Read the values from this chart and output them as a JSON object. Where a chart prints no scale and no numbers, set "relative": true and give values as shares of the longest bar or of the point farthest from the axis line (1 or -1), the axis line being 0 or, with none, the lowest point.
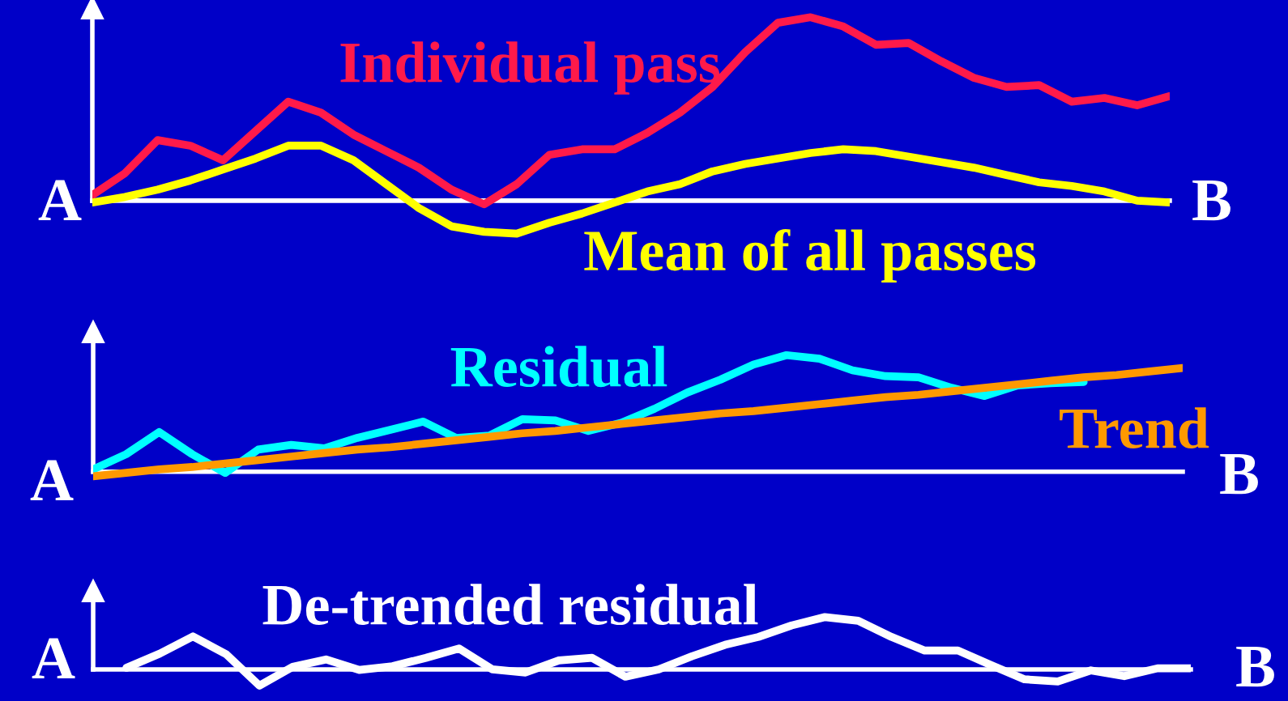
{
  "chart_data": [
    {
      "type": "line",
      "relative": true,
      "legend": false,
      "marker": "none",
      "line_style": "solid",
      "annotations": [
        "A",
        "B"
      ],
      "categories": [
        null,
        null,
        null,
        null,
        null,
        null,
        null,
        null,
        null,
        null,
        null,
        null,
        null,
        null,
        null,
        null,
        null,
        null,
        null,
        null,
        null,
        null,
        null,
        null,
        null,
        null,
        null,
        null,
        null,
        null,
        null,
        null,
        null,
        null
      ],
      "series": [
        {
          "name": "Individual pass",
          "color": "#ff1a4a",
          "values": [
            0.03,
            0.15,
            0.33,
            0.3,
            0.22,
            0.38,
            0.54,
            0.48,
            0.36,
            0.27,
            0.18,
            0.06,
            -0.02,
            0.09,
            0.25,
            0.28,
            0.28,
            0.37,
            0.48,
            0.62,
            0.81,
            0.97,
            1.0,
            0.95,
            0.85,
            0.86,
            0.76,
            0.67,
            0.62,
            0.63,
            0.54,
            0.56,
            0.52,
            0.57
          ]
        },
        {
          "name": "Mean of all passes",
          "color": "#ffff00",
          "values": [
            -0.01,
            0.02,
            0.06,
            0.11,
            0.17,
            0.23,
            0.3,
            0.3,
            0.22,
            0.09,
            -0.04,
            -0.14,
            -0.17,
            -0.18,
            -0.12,
            -0.07,
            -0.01,
            0.05,
            0.09,
            0.16,
            0.2,
            0.23,
            0.26,
            0.28,
            0.27,
            0.24,
            0.21,
            0.18,
            0.14,
            0.1,
            0.08,
            0.05,
            0.0,
            -0.01
          ]
        }
      ]
    },
    {
      "type": "line",
      "relative": true,
      "legend": false,
      "marker": "none",
      "line_style": "solid",
      "annotations": [
        "A",
        "B"
      ],
      "categories": [
        null,
        null,
        null,
        null,
        null,
        null,
        null,
        null,
        null,
        null,
        null,
        null,
        null,
        null,
        null,
        null,
        null,
        null,
        null,
        null,
        null,
        null,
        null,
        null,
        null,
        null,
        null,
        null,
        null,
        null,
        null,
        null,
        null,
        null
      ],
      "series": [
        {
          "name": "Residual",
          "color": "#00ffff",
          "values": [
            0.02,
            0.15,
            0.34,
            0.15,
            -0.01,
            0.19,
            0.23,
            0.2,
            0.29,
            0.36,
            0.43,
            0.29,
            0.31,
            0.45,
            0.44,
            0.35,
            0.42,
            0.54,
            0.68,
            0.79,
            0.92,
            1.0,
            0.97,
            0.87,
            0.82,
            0.81,
            0.72,
            0.65,
            0.74,
            0.76,
            0.77,
            null,
            null,
            null
          ]
        },
        {
          "name": "Trend",
          "color": "#ff9900",
          "values": [
            -0.04,
            -0.01,
            0.02,
            0.04,
            0.07,
            0.1,
            0.13,
            0.16,
            0.19,
            0.21,
            0.24,
            0.27,
            0.3,
            0.33,
            0.35,
            0.38,
            0.41,
            0.44,
            0.47,
            0.5,
            0.52,
            0.55,
            0.58,
            0.61,
            0.64,
            0.66,
            0.69,
            0.72,
            0.75,
            0.78,
            0.81,
            0.83,
            0.86,
            0.89
          ]
        }
      ]
    },
    {
      "type": "line",
      "relative": true,
      "legend": false,
      "marker": "none",
      "line_style": "solid",
      "annotations": [
        "A",
        "B"
      ],
      "categories": [
        null,
        null,
        null,
        null,
        null,
        null,
        null,
        null,
        null,
        null,
        null,
        null,
        null,
        null,
        null,
        null,
        null,
        null,
        null,
        null,
        null,
        null,
        null,
        null,
        null,
        null,
        null,
        null,
        null,
        null,
        null,
        null,
        null,
        null
      ],
      "series": [
        {
          "name": "De-trended residual",
          "color": "#ffffff",
          "values": [
            null,
            0.03,
            0.3,
            0.63,
            0.29,
            -0.31,
            0.05,
            0.19,
            -0.01,
            0.06,
            0.22,
            0.4,
            0.0,
            -0.06,
            0.17,
            0.22,
            -0.14,
            0.0,
            0.25,
            0.47,
            0.62,
            0.84,
            1.0,
            0.93,
            0.62,
            0.36,
            0.36,
            0.08,
            -0.19,
            -0.23,
            -0.02,
            -0.13,
            0.02,
            0.02
          ]
        }
      ]
    }
  ]
}
